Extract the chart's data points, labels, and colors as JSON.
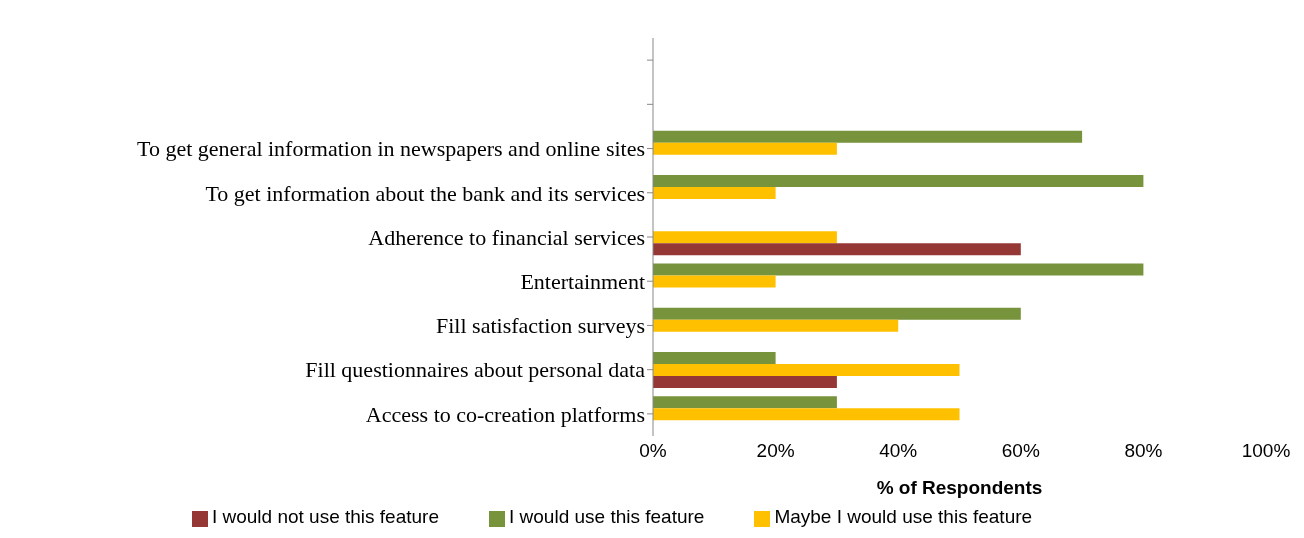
{
  "chart_data": {
    "type": "bar",
    "orientation": "horizontal",
    "xlabel": "% of Respondents",
    "categories": [
      null,
      null,
      "To get general information in newspapers and online sites",
      "To get information about the bank and its services",
      "Adherence to financial services",
      "Entertainment",
      "Fill satisfaction surveys",
      "Fill questionnaires about personal data",
      "Access to co-creation platforms"
    ],
    "series": [
      {
        "name": "I would use this feature",
        "color": "#77933c",
        "values": [
          null,
          null,
          70,
          80,
          null,
          80,
          60,
          20,
          30
        ]
      },
      {
        "name": "Maybe I would use this feature",
        "color": "#ffc000",
        "values": [
          null,
          null,
          30,
          20,
          30,
          20,
          40,
          50,
          50
        ]
      },
      {
        "name": "I would not use this feature",
        "color": "#953735",
        "values": [
          null,
          null,
          null,
          null,
          60,
          null,
          null,
          30,
          null
        ]
      }
    ],
    "xlim": [
      0,
      100
    ],
    "xticks": [
      {
        "value": 0,
        "label": "0%"
      },
      {
        "value": 20,
        "label": "20%"
      },
      {
        "value": 40,
        "label": "40%"
      },
      {
        "value": 60,
        "label": "60%"
      },
      {
        "value": 80,
        "label": "80%"
      },
      {
        "value": 100,
        "label": "100%"
      }
    ],
    "grid": false,
    "legend": "bottom"
  }
}
